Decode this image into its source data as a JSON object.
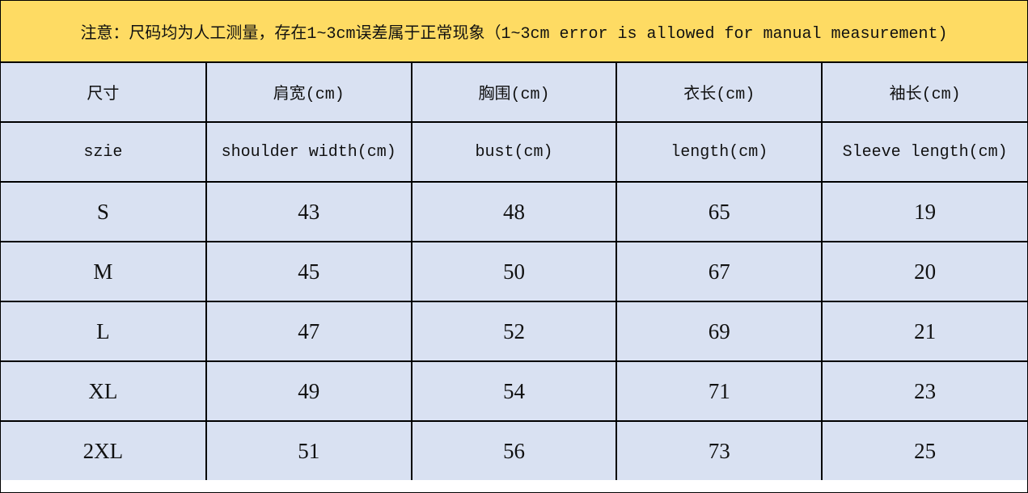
{
  "note": "注意：尺码均为人工测量，存在1~3cm误差属于正常现象（1~3cm error is allowed for manual measurement)",
  "headers_cn": [
    "尺寸",
    "肩宽(cm)",
    "胸围(cm)",
    "衣长(cm)",
    "袖长(cm)"
  ],
  "headers_en": [
    "szie",
    "shoulder width(cm)",
    "bust(cm)",
    "length(cm)",
    "Sleeve length(cm)"
  ],
  "rows": [
    [
      "S",
      "43",
      "48",
      "65",
      "19"
    ],
    [
      "M",
      "45",
      "50",
      "67",
      "20"
    ],
    [
      "L",
      "47",
      "52",
      "69",
      "21"
    ],
    [
      "XL",
      "49",
      "54",
      "71",
      "23"
    ],
    [
      "2XL",
      "51",
      "56",
      "73",
      "25"
    ]
  ],
  "colors": {
    "note_bg": "#FEDB63",
    "cell_bg": "#D9E1F2",
    "border": "#000000"
  }
}
